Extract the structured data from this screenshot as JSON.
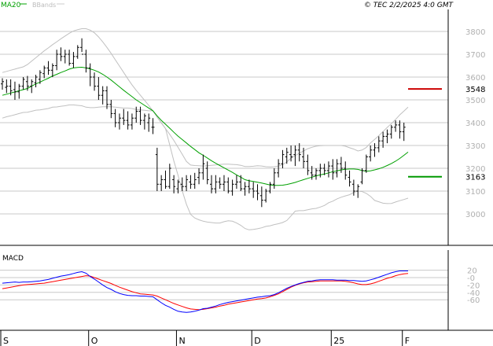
{
  "header": {
    "legend": [
      {
        "label": "MA20",
        "color": "#00a000"
      },
      {
        "label": "BBands",
        "color": "#bbbbbb"
      }
    ],
    "copyright": "© TEC 2/2/2025 4:0 GMT"
  },
  "colors": {
    "candle": "#000000",
    "ma20": "#00a000",
    "bbands": "#c0c0c0",
    "grid": "#c8c8c8",
    "macd": "#0000ff",
    "signal": "#ff0000",
    "resistance": "#cc0000",
    "support": "#009900"
  },
  "chart_data": [
    {
      "type": "line",
      "title": "",
      "x_ticks": [
        "S",
        "O",
        "N",
        "D",
        "25",
        "F"
      ],
      "y_ticks": [
        "3800",
        "3700",
        "3600",
        "3500",
        "3400",
        "3300",
        "3200",
        "3100",
        "3000"
      ],
      "ylim": [
        2860,
        3880
      ],
      "grid": true,
      "bars": [
        [
          3570,
          3595,
          3545,
          3580
        ],
        [
          3555,
          3590,
          3530,
          3560
        ],
        [
          3560,
          3590,
          3520,
          3540
        ],
        [
          3545,
          3580,
          3500,
          3535
        ],
        [
          3535,
          3570,
          3505,
          3560
        ],
        [
          3560,
          3600,
          3545,
          3590
        ],
        [
          3580,
          3605,
          3540,
          3560
        ],
        [
          3560,
          3590,
          3530,
          3580
        ],
        [
          3575,
          3610,
          3555,
          3600
        ],
        [
          3590,
          3630,
          3570,
          3620
        ],
        [
          3615,
          3650,
          3595,
          3640
        ],
        [
          3640,
          3670,
          3610,
          3630
        ],
        [
          3630,
          3660,
          3600,
          3650
        ],
        [
          3650,
          3720,
          3630,
          3700
        ],
        [
          3700,
          3730,
          3670,
          3690
        ],
        [
          3690,
          3720,
          3660,
          3700
        ],
        [
          3700,
          3720,
          3650,
          3660
        ],
        [
          3660,
          3710,
          3640,
          3690
        ],
        [
          3690,
          3740,
          3680,
          3730
        ],
        [
          3730,
          3770,
          3710,
          3700
        ],
        [
          3700,
          3720,
          3620,
          3640
        ],
        [
          3640,
          3660,
          3560,
          3600
        ],
        [
          3600,
          3620,
          3540,
          3560
        ],
        [
          3560,
          3600,
          3500,
          3520
        ],
        [
          3520,
          3560,
          3480,
          3540
        ],
        [
          3540,
          3560,
          3460,
          3480
        ],
        [
          3480,
          3500,
          3420,
          3440
        ],
        [
          3440,
          3460,
          3380,
          3400
        ],
        [
          3400,
          3440,
          3370,
          3420
        ],
        [
          3420,
          3460,
          3390,
          3410
        ],
        [
          3410,
          3450,
          3370,
          3390
        ],
        [
          3390,
          3440,
          3370,
          3420
        ],
        [
          3420,
          3470,
          3400,
          3450
        ],
        [
          3450,
          3470,
          3390,
          3410
        ],
        [
          3410,
          3440,
          3370,
          3430
        ],
        [
          3400,
          3440,
          3360,
          3420
        ],
        [
          3380,
          3420,
          3350,
          3380
        ],
        [
          3260,
          3290,
          3100,
          3130
        ],
        [
          3130,
          3170,
          3100,
          3150
        ],
        [
          3150,
          3190,
          3110,
          3120
        ],
        [
          3120,
          3220,
          3110,
          3200
        ],
        [
          3150,
          3170,
          3090,
          3120
        ],
        [
          3110,
          3150,
          3090,
          3140
        ],
        [
          3130,
          3160,
          3100,
          3120
        ],
        [
          3120,
          3170,
          3100,
          3150
        ],
        [
          3140,
          3170,
          3110,
          3130
        ],
        [
          3130,
          3180,
          3110,
          3150
        ],
        [
          3160,
          3200,
          3130,
          3180
        ],
        [
          3180,
          3260,
          3150,
          3220
        ],
        [
          3200,
          3230,
          3130,
          3150
        ],
        [
          3130,
          3170,
          3090,
          3110
        ],
        [
          3110,
          3170,
          3090,
          3140
        ],
        [
          3140,
          3160,
          3110,
          3130
        ],
        [
          3130,
          3170,
          3100,
          3140
        ],
        [
          3140,
          3160,
          3090,
          3100
        ],
        [
          3100,
          3150,
          3080,
          3130
        ],
        [
          3130,
          3170,
          3110,
          3140
        ],
        [
          3140,
          3170,
          3100,
          3110
        ],
        [
          3110,
          3140,
          3080,
          3120
        ],
        [
          3120,
          3150,
          3090,
          3110
        ],
        [
          3110,
          3140,
          3070,
          3100
        ],
        [
          3100,
          3130,
          3060,
          3090
        ],
        [
          3080,
          3120,
          3030,
          3060
        ],
        [
          3060,
          3110,
          3050,
          3100
        ],
        [
          3100,
          3140,
          3090,
          3130
        ],
        [
          3130,
          3200,
          3110,
          3180
        ],
        [
          3180,
          3240,
          3160,
          3220
        ],
        [
          3220,
          3280,
          3200,
          3260
        ],
        [
          3250,
          3290,
          3220,
          3270
        ],
        [
          3260,
          3300,
          3230,
          3250
        ],
        [
          3260,
          3300,
          3210,
          3280
        ],
        [
          3280,
          3310,
          3230,
          3260
        ],
        [
          3250,
          3290,
          3200,
          3230
        ],
        [
          3230,
          3260,
          3170,
          3190
        ],
        [
          3180,
          3210,
          3150,
          3170
        ],
        [
          3170,
          3200,
          3150,
          3190
        ],
        [
          3190,
          3220,
          3160,
          3200
        ],
        [
          3200,
          3220,
          3170,
          3190
        ],
        [
          3190,
          3230,
          3160,
          3210
        ],
        [
          3210,
          3240,
          3150,
          3180
        ],
        [
          3180,
          3240,
          3160,
          3220
        ],
        [
          3220,
          3250,
          3180,
          3200
        ],
        [
          3200,
          3230,
          3150,
          3170
        ],
        [
          3160,
          3190,
          3120,
          3140
        ],
        [
          3130,
          3150,
          3080,
          3100
        ],
        [
          3100,
          3130,
          3070,
          3120
        ],
        [
          3140,
          3200,
          3130,
          3190
        ],
        [
          3190,
          3260,
          3180,
          3250
        ],
        [
          3250,
          3300,
          3230,
          3280
        ],
        [
          3280,
          3310,
          3250,
          3290
        ],
        [
          3290,
          3340,
          3270,
          3320
        ],
        [
          3320,
          3360,
          3290,
          3340
        ],
        [
          3340,
          3370,
          3310,
          3350
        ],
        [
          3350,
          3390,
          3330,
          3380
        ],
        [
          3380,
          3410,
          3360,
          3390
        ],
        [
          3390,
          3410,
          3330,
          3360
        ],
        [
          3360,
          3400,
          3320,
          3380
        ]
      ],
      "series": [
        {
          "name": "MA20",
          "values": [
            3520,
            3525,
            3530,
            3535,
            3540,
            3545,
            3550,
            3560,
            3570,
            3578,
            3587,
            3595,
            3605,
            3612,
            3620,
            3627,
            3635,
            3640,
            3642,
            3643,
            3640,
            3636,
            3630,
            3622,
            3612,
            3600,
            3587,
            3572,
            3557,
            3542,
            3528,
            3514,
            3500,
            3488,
            3476,
            3464,
            3452,
            3430,
            3410,
            3393,
            3376,
            3358,
            3341,
            3326,
            3311,
            3296,
            3282,
            3268,
            3257,
            3245,
            3233,
            3222,
            3212,
            3202,
            3192,
            3182,
            3171,
            3161,
            3150,
            3145,
            3142,
            3139,
            3135,
            3131,
            3127,
            3125,
            3125,
            3126,
            3129,
            3133,
            3138,
            3144,
            3150,
            3156,
            3161,
            3167,
            3171,
            3175,
            3180,
            3185,
            3189,
            3193,
            3196,
            3197,
            3197,
            3195,
            3190,
            3187,
            3189,
            3193,
            3198,
            3204,
            3212,
            3221,
            3231,
            3243,
            3257,
            3271
          ]
        },
        {
          "name": "",
          "values": [
            3620,
            3625,
            3630,
            3635,
            3640,
            3645,
            3655,
            3670,
            3685,
            3700,
            3715,
            3728,
            3742,
            3755,
            3768,
            3780,
            3792,
            3802,
            3808,
            3812,
            3812,
            3806,
            3794,
            3776,
            3754,
            3730,
            3704,
            3676,
            3648,
            3620,
            3592,
            3566,
            3542,
            3520,
            3498,
            3476,
            3452,
            3425,
            3399,
            3374,
            3349,
            3322,
            3292,
            3261,
            3230,
            3214,
            3212,
            3211,
            3210,
            3211,
            3213,
            3215,
            3217,
            3218,
            3218,
            3217,
            3216,
            3213,
            3208,
            3208,
            3209,
            3211,
            3210,
            3207,
            3206,
            3207,
            3210,
            3216,
            3228,
            3244,
            3256,
            3266,
            3276,
            3286,
            3292,
            3297,
            3299,
            3300,
            3300,
            3300,
            3300,
            3300,
            3297,
            3290,
            3284,
            3276,
            3280,
            3291,
            3311,
            3327,
            3343,
            3361,
            3379,
            3396,
            3414,
            3434,
            3451,
            3468
          ]
        },
        {
          "name": "",
          "values": [
            3420,
            3426,
            3430,
            3435,
            3440,
            3445,
            3446,
            3450,
            3455,
            3456,
            3459,
            3462,
            3468,
            3469,
            3472,
            3474,
            3478,
            3478,
            3476,
            3474,
            3468,
            3466,
            3466,
            3468,
            3470,
            3470,
            3470,
            3468,
            3466,
            3464,
            3464,
            3462,
            3458,
            3456,
            3454,
            3452,
            3452,
            3425,
            3399,
            3374,
            3303,
            3232,
            3170,
            3101,
            3042,
            2998,
            2982,
            2974,
            2968,
            2964,
            2962,
            2960,
            2960,
            2966,
            2970,
            2968,
            2960,
            2950,
            2936,
            2930,
            2932,
            2935,
            2939,
            2945,
            2948,
            2953,
            2957,
            2962,
            2971,
            2991,
            3012,
            3014,
            3014,
            3018,
            3022,
            3024,
            3030,
            3037,
            3049,
            3056,
            3066,
            3073,
            3079,
            3084,
            3094,
            3100,
            3098,
            3090,
            3077,
            3059,
            3053,
            3047,
            3045,
            3046,
            3052,
            3058,
            3063,
            3069
          ]
        }
      ],
      "reference_lines": [
        {
          "name": "resistance",
          "value": 3548,
          "label": "3548"
        },
        {
          "name": "support",
          "value": 3163,
          "label": "3163"
        }
      ]
    },
    {
      "type": "line",
      "title": "MACD",
      "y_ticks": [
        "20",
        "-0",
        "-20",
        "-40",
        "-60"
      ],
      "ylim": [
        -110,
        70
      ],
      "grid": true,
      "series": [
        {
          "name": "",
          "values": [
            -15,
            -14,
            -13,
            -12,
            -13,
            -12,
            -12,
            -11,
            -10,
            -9,
            -7,
            -5,
            -2,
            1,
            4,
            6,
            8,
            11,
            14,
            16,
            12,
            3,
            -4,
            -12,
            -20,
            -27,
            -32,
            -38,
            -43,
            -46,
            -48,
            -49,
            -49,
            -50,
            -50,
            -51,
            -52,
            -60,
            -68,
            -75,
            -80,
            -86,
            -91,
            -93,
            -94,
            -93,
            -91,
            -88,
            -84,
            -83,
            -80,
            -77,
            -73,
            -70,
            -67,
            -65,
            -63,
            -61,
            -59,
            -57,
            -55,
            -53,
            -52,
            -50,
            -49,
            -46,
            -41,
            -35,
            -29,
            -24,
            -20,
            -16,
            -13,
            -10,
            -9,
            -7,
            -6,
            -6,
            -6,
            -6,
            -7,
            -7,
            -7,
            -8,
            -8,
            -9,
            -10,
            -9,
            -6,
            -3,
            1,
            5,
            9,
            13,
            16,
            18,
            18,
            18
          ]
        },
        {
          "name": "",
          "values": [
            -30,
            -28,
            -26,
            -24,
            -22,
            -20,
            -19,
            -18,
            -17,
            -16,
            -15,
            -13,
            -11,
            -9,
            -7,
            -5,
            -3,
            -1,
            1,
            3,
            5,
            4,
            0,
            -4,
            -8,
            -12,
            -16,
            -21,
            -26,
            -30,
            -34,
            -38,
            -41,
            -44,
            -45,
            -46,
            -47,
            -50,
            -55,
            -60,
            -65,
            -70,
            -74,
            -78,
            -82,
            -85,
            -86,
            -87,
            -86,
            -84,
            -82,
            -80,
            -77,
            -75,
            -72,
            -70,
            -68,
            -66,
            -64,
            -62,
            -60,
            -58,
            -57,
            -55,
            -52,
            -48,
            -44,
            -38,
            -32,
            -26,
            -21,
            -17,
            -14,
            -12,
            -11,
            -10,
            -9,
            -9,
            -9,
            -9,
            -9,
            -9,
            -10,
            -12,
            -14,
            -17,
            -19,
            -19,
            -17,
            -14,
            -10,
            -6,
            -2,
            1,
            5,
            8,
            10,
            11
          ]
        }
      ]
    }
  ]
}
